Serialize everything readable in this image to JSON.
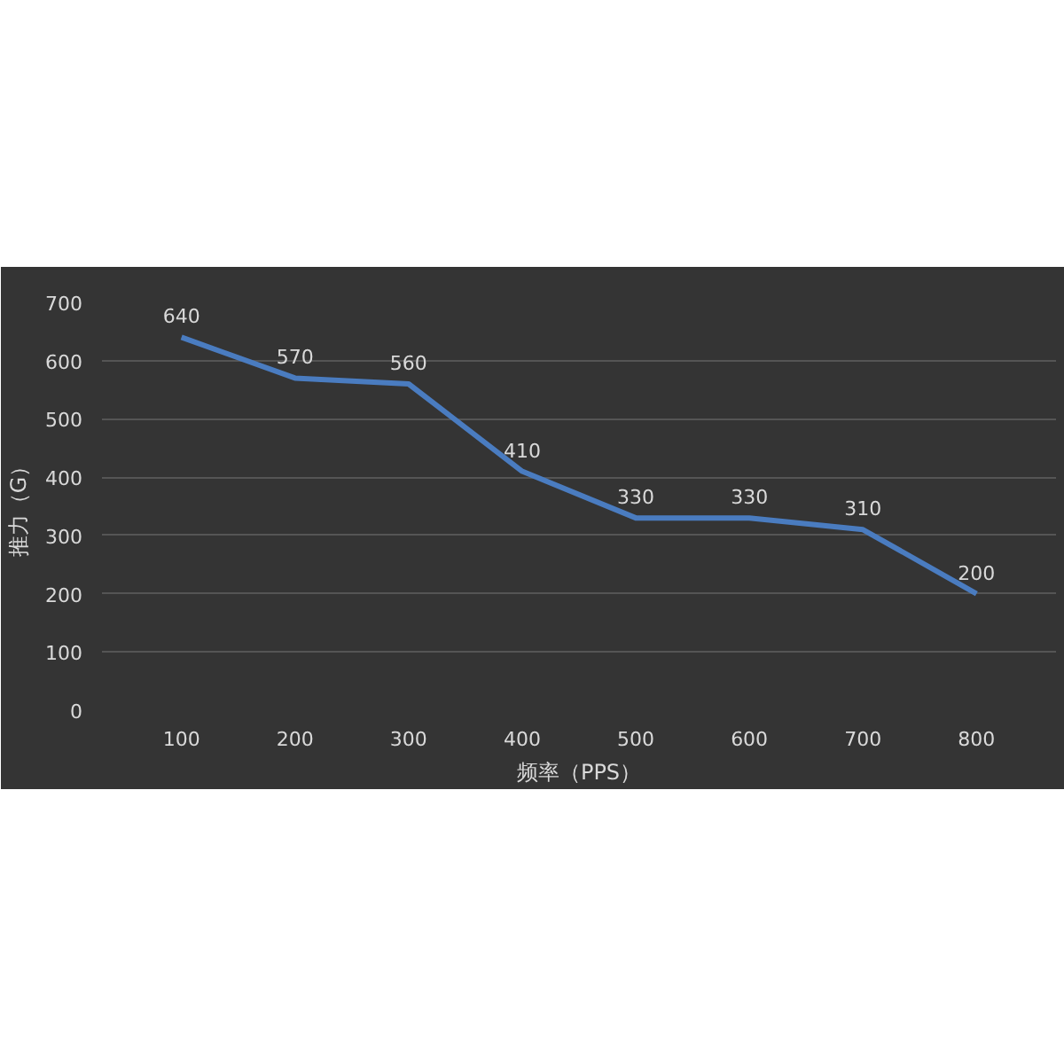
{
  "chart_data": {
    "type": "line",
    "xlabel": "频率（PPS）",
    "ylabel": "推力（G）",
    "categories": [
      "100",
      "200",
      "300",
      "400",
      "500",
      "600",
      "700",
      "800"
    ],
    "series": [
      {
        "color": "#4a7cc0",
        "values": [
          640,
          570,
          560,
          410,
          330,
          330,
          310,
          200
        ]
      }
    ],
    "ylim": [
      0,
      700
    ],
    "yticks": [
      0,
      100,
      200,
      300,
      400,
      500,
      600,
      700
    ],
    "grid": "y",
    "data_labels": true,
    "marker": "none",
    "line_style": "solid"
  }
}
